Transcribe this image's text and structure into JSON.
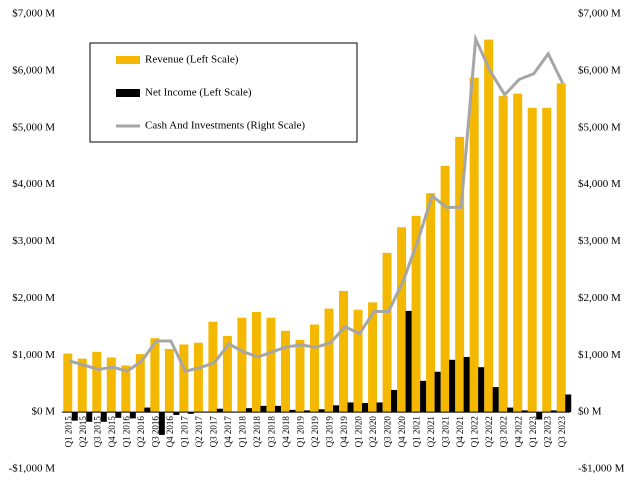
{
  "chart_data": {
    "type": "bar-line",
    "categories": [
      "Q1 2015",
      "Q2 2015",
      "Q3 2015",
      "Q4 2015",
      "Q1 2016",
      "Q2 2016",
      "Q3 2016",
      "Q4 2016",
      "Q1 2017",
      "Q2 2017",
      "Q3 2017",
      "Q4 2017",
      "Q1 2018",
      "Q2 2018",
      "Q3 2018",
      "Q4 2018",
      "Q1 2019",
      "Q2 2019",
      "Q3 2019",
      "Q4 2019",
      "Q1 2020",
      "Q2 2020",
      "Q3 2020",
      "Q4 2020",
      "Q1 2021",
      "Q2 2021",
      "Q3 2021",
      "Q4 2021",
      "Q1 2022",
      "Q2 2022",
      "Q3 2022",
      "Q4 2022",
      "Q1 2023",
      "Q2 2023",
      "Q3 2023"
    ],
    "series": [
      {
        "name": "Revenue (Left Scale)",
        "color": "#f5b800",
        "kind": "bar",
        "values": [
          1030,
          940,
          1060,
          960,
          820,
          1020,
          1300,
          1110,
          1190,
          1220,
          1590,
          1340,
          1660,
          1760,
          1660,
          1430,
          1270,
          1540,
          1820,
          2130,
          1800,
          1930,
          2800,
          3250,
          3450,
          3850,
          4330,
          4840,
          5880,
          6550,
          5560,
          5600,
          5350,
          5350,
          5780
        ]
      },
      {
        "name": "Net Income (Left Scale)",
        "color": "#000000",
        "kind": "bar",
        "values": [
          -150,
          -170,
          -170,
          -100,
          -110,
          80,
          -400,
          -50,
          -30,
          10,
          60,
          10,
          70,
          110,
          110,
          40,
          30,
          50,
          120,
          170,
          160,
          170,
          390,
          1780,
          550,
          710,
          920,
          970,
          790,
          440,
          80,
          30,
          -130,
          30,
          310
        ]
      },
      {
        "name": "Cash And Investments (Right Scale)",
        "color": "#a6a6a6",
        "kind": "line",
        "axis": "y2",
        "values": [
          900,
          830,
          750,
          790,
          720,
          900,
          1250,
          1250,
          720,
          780,
          870,
          1200,
          1060,
          970,
          1060,
          1150,
          1180,
          1140,
          1220,
          1500,
          1380,
          1770,
          1770,
          2300,
          3000,
          3800,
          3600,
          3600,
          6560,
          6000,
          5580,
          5850,
          5950,
          6300,
          5780
        ]
      }
    ],
    "ylim": [
      -1000,
      7000
    ],
    "yticks": [
      {
        "value": -1000,
        "label": "-$1,000 M"
      },
      {
        "value": 0,
        "label": "$0 M"
      },
      {
        "value": 1000,
        "label": "$1,000 M"
      },
      {
        "value": 2000,
        "label": "$2,000 M"
      },
      {
        "value": 3000,
        "label": "$3,000 M"
      },
      {
        "value": 4000,
        "label": "$4,000 M"
      },
      {
        "value": 5000,
        "label": "$5,000 M"
      },
      {
        "value": 6000,
        "label": "$6,000 M"
      },
      {
        "value": 7000,
        "label": "$7,000 M"
      }
    ],
    "y2lim": [
      -1000,
      7000
    ],
    "y2ticks": [
      {
        "value": -1000,
        "label": "-$1,000 M"
      },
      {
        "value": 0,
        "label": "$0 M"
      },
      {
        "value": 1000,
        "label": "$1,000 M"
      },
      {
        "value": 2000,
        "label": "$2,000 M"
      },
      {
        "value": 3000,
        "label": "$3,000 M"
      },
      {
        "value": 4000,
        "label": "$4,000 M"
      },
      {
        "value": 5000,
        "label": "$5,000 M"
      },
      {
        "value": 6000,
        "label": "$6,000 M"
      },
      {
        "value": 7000,
        "label": "$7,000 M"
      }
    ],
    "legend": "upper left"
  }
}
